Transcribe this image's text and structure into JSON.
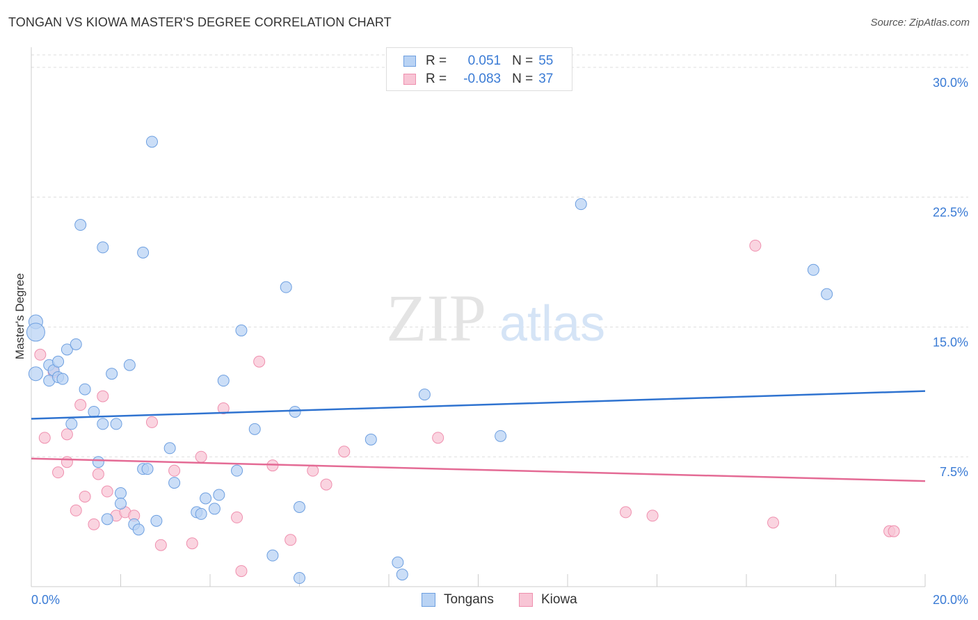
{
  "title": "TONGAN VS KIOWA MASTER'S DEGREE CORRELATION CHART",
  "source": "Source: ZipAtlas.com",
  "watermark": {
    "zip": "ZIP",
    "atlas": "atlas"
  },
  "legend": {
    "rows": [
      {
        "r_label": "R =",
        "r_value": "0.051",
        "n_label": "N =",
        "n_value": "55"
      },
      {
        "r_label": "R =",
        "r_value": "-0.083",
        "n_label": "N =",
        "n_value": "37"
      }
    ]
  },
  "bottom_legend": [
    "Tongans",
    "Kiowa"
  ],
  "colors": {
    "blue_fill": "#b9d3f4",
    "blue_stroke": "#6d9fe0",
    "blue_line": "#2f73d0",
    "pink_fill": "#f8c5d5",
    "pink_stroke": "#ef8fae",
    "pink_line": "#e46b95",
    "axis_text": "#3a7bd5",
    "grid": "#dddddd"
  },
  "chart_data": {
    "type": "scatter",
    "title": "TONGAN VS KIOWA MASTER'S DEGREE CORRELATION CHART",
    "xlabel": "",
    "ylabel": "Master's Degree",
    "xlim": [
      0,
      20
    ],
    "ylim": [
      0,
      31
    ],
    "x_tick_labels": [
      "0.0%",
      "20.0%"
    ],
    "y_ticks": [
      7.5,
      15.0,
      22.5,
      30.0
    ],
    "y_tick_labels": [
      "7.5%",
      "15.0%",
      "22.5%",
      "30.0%"
    ],
    "grid": true,
    "series": [
      {
        "name": "Tongans",
        "r": 0.051,
        "n": 55,
        "trend": [
          [
            0,
            9.7
          ],
          [
            20,
            11.3
          ]
        ],
        "points": [
          [
            0.1,
            15.3
          ],
          [
            0.1,
            14.7
          ],
          [
            0.1,
            12.3
          ],
          [
            0.4,
            12.8
          ],
          [
            0.4,
            11.9
          ],
          [
            0.5,
            12.5
          ],
          [
            0.6,
            13.0
          ],
          [
            0.6,
            12.1
          ],
          [
            0.7,
            12.0
          ],
          [
            0.8,
            13.7
          ],
          [
            0.9,
            9.4
          ],
          [
            1.0,
            14.0
          ],
          [
            1.1,
            20.9
          ],
          [
            1.2,
            11.4
          ],
          [
            1.4,
            10.1
          ],
          [
            1.5,
            7.2
          ],
          [
            1.6,
            9.4
          ],
          [
            1.6,
            19.6
          ],
          [
            1.7,
            3.9
          ],
          [
            1.8,
            12.3
          ],
          [
            1.9,
            9.4
          ],
          [
            2.0,
            5.4
          ],
          [
            2.0,
            4.8
          ],
          [
            2.2,
            12.8
          ],
          [
            2.3,
            3.6
          ],
          [
            2.4,
            3.3
          ],
          [
            2.5,
            6.8
          ],
          [
            2.5,
            19.3
          ],
          [
            2.6,
            6.8
          ],
          [
            2.7,
            25.7
          ],
          [
            2.8,
            3.8
          ],
          [
            3.1,
            8.0
          ],
          [
            3.2,
            6.0
          ],
          [
            3.7,
            4.3
          ],
          [
            3.8,
            4.2
          ],
          [
            3.9,
            5.1
          ],
          [
            4.1,
            4.5
          ],
          [
            4.2,
            5.3
          ],
          [
            4.3,
            11.9
          ],
          [
            4.6,
            6.7
          ],
          [
            4.7,
            14.8
          ],
          [
            5.0,
            9.1
          ],
          [
            5.4,
            1.8
          ],
          [
            5.7,
            17.3
          ],
          [
            5.9,
            10.1
          ],
          [
            6.0,
            4.6
          ],
          [
            6.0,
            0.5
          ],
          [
            7.6,
            8.5
          ],
          [
            8.2,
            1.4
          ],
          [
            8.3,
            0.7
          ],
          [
            8.8,
            11.1
          ],
          [
            10.5,
            8.7
          ],
          [
            12.3,
            22.1
          ],
          [
            17.5,
            18.3
          ],
          [
            17.8,
            16.9
          ]
        ]
      },
      {
        "name": "Kiowa",
        "r": -0.083,
        "n": 37,
        "trend": [
          [
            0,
            7.4
          ],
          [
            20,
            6.1
          ]
        ],
        "points": [
          [
            0.2,
            13.4
          ],
          [
            0.3,
            8.6
          ],
          [
            0.5,
            12.4
          ],
          [
            0.6,
            6.6
          ],
          [
            0.8,
            7.2
          ],
          [
            0.8,
            8.8
          ],
          [
            1.0,
            4.4
          ],
          [
            1.1,
            10.5
          ],
          [
            1.2,
            5.2
          ],
          [
            1.4,
            3.6
          ],
          [
            1.5,
            6.5
          ],
          [
            1.6,
            11.0
          ],
          [
            1.7,
            5.5
          ],
          [
            1.9,
            4.1
          ],
          [
            2.1,
            4.3
          ],
          [
            2.3,
            4.1
          ],
          [
            2.7,
            9.5
          ],
          [
            2.9,
            2.4
          ],
          [
            3.2,
            6.7
          ],
          [
            3.6,
            2.5
          ],
          [
            3.8,
            7.5
          ],
          [
            4.3,
            10.3
          ],
          [
            4.6,
            4.0
          ],
          [
            4.7,
            0.9
          ],
          [
            5.1,
            13.0
          ],
          [
            5.4,
            7.0
          ],
          [
            5.8,
            2.7
          ],
          [
            6.3,
            6.7
          ],
          [
            6.6,
            5.9
          ],
          [
            7.0,
            7.8
          ],
          [
            9.1,
            8.6
          ],
          [
            13.3,
            4.3
          ],
          [
            13.9,
            4.1
          ],
          [
            16.2,
            19.7
          ],
          [
            16.6,
            3.7
          ],
          [
            19.2,
            3.2
          ],
          [
            19.3,
            3.2
          ]
        ]
      }
    ]
  }
}
